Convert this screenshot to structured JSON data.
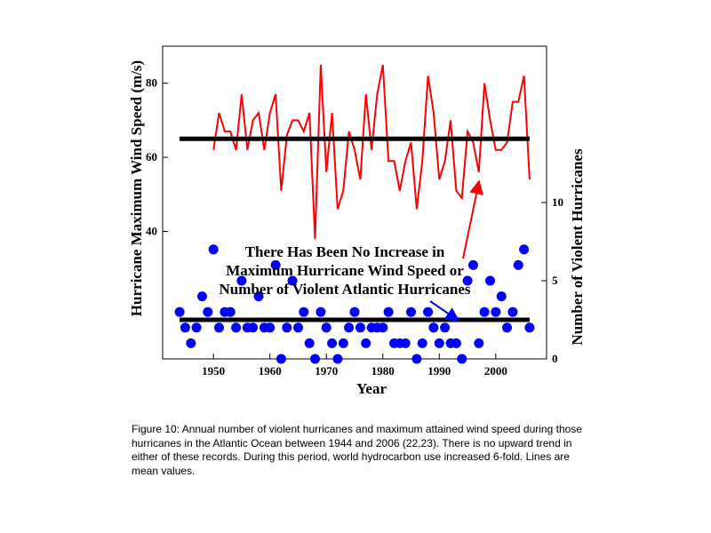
{
  "chart_data": {
    "type": "line",
    "title": "",
    "xlabel": "Year",
    "ylabel_left": "Hurricane Maximum Wind Speed (m/s)",
    "ylabel_right": "Number of Violent Hurricanes",
    "xlim": [
      1941,
      2009
    ],
    "xticks": [
      1950,
      1960,
      1970,
      1980,
      1990,
      2000
    ],
    "yticks_left": [
      40,
      60,
      80
    ],
    "yticks_right": [
      0,
      5,
      10
    ],
    "annotation": "There Has Been No Increase in Maximum Hurricane Wind Speed or Number of Violent Atlantic Hurricanes",
    "colors": {
      "wind": "#ff0000",
      "count": "#0000ff",
      "mean": "#000000"
    },
    "wind_speed": {
      "ylim": [
        5.6,
        90
      ],
      "mean": 65,
      "x": [
        1950,
        1951,
        1952,
        1953,
        1954,
        1955,
        1956,
        1957,
        1958,
        1959,
        1960,
        1961,
        1962,
        1963,
        1964,
        1965,
        1966,
        1967,
        1968,
        1969,
        1970,
        1971,
        1972,
        1973,
        1974,
        1975,
        1976,
        1977,
        1978,
        1979,
        1980,
        1981,
        1982,
        1983,
        1984,
        1985,
        1986,
        1987,
        1988,
        1989,
        1990,
        1991,
        1992,
        1993,
        1994,
        1995,
        1996,
        1997,
        1998,
        1999,
        2000,
        2001,
        2002,
        2003,
        2004,
        2005,
        2006
      ],
      "values": [
        62,
        72,
        67,
        67,
        62,
        77,
        62,
        70,
        72,
        62,
        72,
        77,
        51,
        66,
        70,
        70,
        67,
        72,
        38,
        85,
        56,
        72,
        46,
        51,
        67,
        62,
        54,
        77,
        62,
        77,
        85,
        59,
        59,
        51,
        59,
        64,
        46,
        59,
        82,
        72,
        54,
        59,
        70,
        51,
        49,
        67,
        64,
        56,
        80,
        70,
        62,
        62,
        64,
        75,
        75,
        82,
        54
      ]
    },
    "violent_count": {
      "ylim": [
        0,
        20
      ],
      "mean": 2.5,
      "x": [
        1944,
        1945,
        1946,
        1947,
        1948,
        1949,
        1950,
        1951,
        1952,
        1953,
        1954,
        1955,
        1956,
        1957,
        1958,
        1959,
        1960,
        1961,
        1962,
        1963,
        1964,
        1965,
        1966,
        1967,
        1968,
        1969,
        1970,
        1971,
        1972,
        1973,
        1974,
        1975,
        1976,
        1977,
        1978,
        1979,
        1980,
        1981,
        1982,
        1983,
        1984,
        1985,
        1986,
        1987,
        1988,
        1989,
        1990,
        1991,
        1992,
        1993,
        1994,
        1995,
        1996,
        1997,
        1998,
        1999,
        2000,
        2001,
        2002,
        2003,
        2004,
        2005,
        2006
      ],
      "values": [
        3,
        2,
        1,
        2,
        4,
        3,
        7,
        2,
        3,
        3,
        2,
        5,
        2,
        2,
        4,
        2,
        2,
        6,
        0,
        2,
        5,
        2,
        3,
        1,
        0,
        3,
        2,
        1,
        0,
        1,
        2,
        3,
        2,
        1,
        2,
        2,
        2,
        3,
        1,
        1,
        1,
        3,
        0,
        1,
        3,
        2,
        1,
        2,
        1,
        1,
        0,
        5,
        6,
        1,
        3,
        5,
        3,
        4,
        2,
        3,
        6,
        7,
        2
      ]
    }
  },
  "caption": "Figure 10: Annual number of violent hurricanes and maximum attained wind speed during those hurricanes in the Atlantic Ocean between 1944 and 2006 (22,23). There is no upward trend in either of these records. During this period, world hydrocarbon use increased 6-fold. Lines are mean values."
}
